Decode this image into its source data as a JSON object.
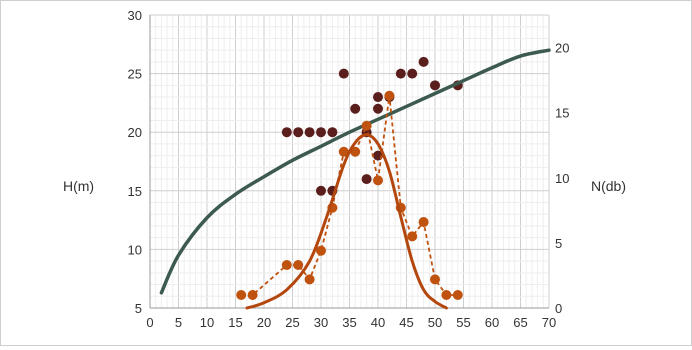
{
  "chart_data": {
    "type": "scatter",
    "title": "",
    "grid": true,
    "x_axis": {
      "min": 0,
      "max": 70,
      "ticks": [
        "0",
        "5",
        "10",
        "15",
        "20",
        "25",
        "30",
        "35",
        "40",
        "45",
        "50",
        "55",
        "60",
        "65",
        "70"
      ]
    },
    "y_left": {
      "label": "H(m)",
      "min": 5,
      "max": 30,
      "ticks": [
        "5",
        "10",
        "15",
        "20",
        "25",
        "30"
      ]
    },
    "y_right": {
      "label": "N(db)",
      "min": 0,
      "max": 22.5,
      "ticks": [
        "0",
        "5",
        "10",
        "15",
        "20"
      ]
    },
    "series": [
      {
        "axis": "left",
        "kind": "points",
        "color": "#5a1e1c",
        "points": [
          [
            24,
            20
          ],
          [
            26,
            20
          ],
          [
            28,
            20
          ],
          [
            30,
            20
          ],
          [
            32,
            20
          ],
          [
            30,
            15
          ],
          [
            32,
            15
          ],
          [
            34,
            25
          ],
          [
            36,
            22
          ],
          [
            38,
            20
          ],
          [
            38,
            16
          ],
          [
            40,
            22
          ],
          [
            40,
            23
          ],
          [
            42,
            23
          ],
          [
            40,
            18
          ],
          [
            44,
            25
          ],
          [
            46,
            25
          ],
          [
            48,
            26
          ],
          [
            50,
            24
          ],
          [
            54,
            24
          ]
        ]
      },
      {
        "axis": "left",
        "kind": "curve",
        "color": "#3d5a4f",
        "points": [
          [
            2,
            6.3
          ],
          [
            5,
            9.5
          ],
          [
            10,
            12.7
          ],
          [
            15,
            14.7
          ],
          [
            20,
            16.2
          ],
          [
            25,
            17.6
          ],
          [
            30,
            18.8
          ],
          [
            35,
            20.0
          ],
          [
            40,
            21.1
          ],
          [
            45,
            22.2
          ],
          [
            50,
            23.3
          ],
          [
            55,
            24.4
          ],
          [
            60,
            25.5
          ],
          [
            65,
            26.5
          ],
          [
            70,
            27.0
          ]
        ]
      },
      {
        "axis": "right",
        "kind": "points-dashed",
        "color": "#c0520f",
        "points": [
          [
            16,
            1
          ],
          [
            18,
            1
          ],
          [
            24,
            3.3
          ],
          [
            26,
            3.3
          ],
          [
            28,
            2.2
          ],
          [
            30,
            4.4
          ],
          [
            32,
            7.7
          ],
          [
            34,
            12
          ],
          [
            36,
            12
          ],
          [
            38,
            14
          ],
          [
            40,
            9.8
          ],
          [
            42,
            16.3
          ],
          [
            44,
            7.7
          ],
          [
            46,
            5.5
          ],
          [
            48,
            6.6
          ],
          [
            50,
            2.2
          ],
          [
            52,
            1
          ],
          [
            54,
            1
          ]
        ]
      },
      {
        "axis": "right",
        "kind": "fit",
        "color": "#b4470d",
        "points": [
          [
            17,
            0
          ],
          [
            20,
            0.4
          ],
          [
            24,
            1.4
          ],
          [
            28,
            3.6
          ],
          [
            31,
            7.0
          ],
          [
            34,
            11.0
          ],
          [
            36,
            12.7
          ],
          [
            38,
            13.3
          ],
          [
            40,
            12.6
          ],
          [
            42,
            10.5
          ],
          [
            44,
            7.0
          ],
          [
            46,
            3.6
          ],
          [
            48,
            1.4
          ],
          [
            50,
            0.5
          ],
          [
            52,
            0
          ]
        ]
      }
    ]
  }
}
